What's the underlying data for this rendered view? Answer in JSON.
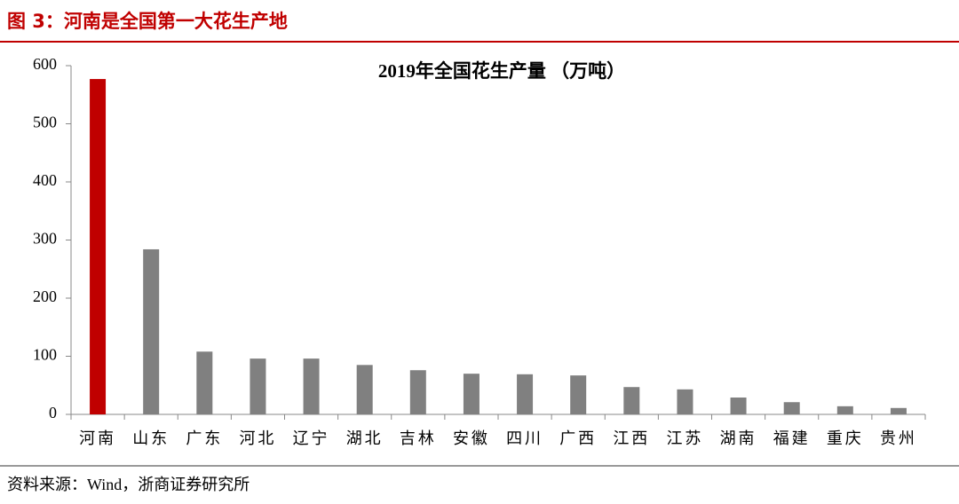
{
  "header": {
    "title": "图 3：河南是全国第一大花生产地"
  },
  "chart_data": {
    "type": "bar",
    "title": "2019年全国花生产量 （万吨）",
    "categories": [
      "河南",
      "山东",
      "广东",
      "河北",
      "辽宁",
      "湖北",
      "吉林",
      "安徽",
      "四川",
      "广西",
      "江西",
      "江苏",
      "湖南",
      "福建",
      "重庆",
      "贵州"
    ],
    "values": [
      577,
      284,
      108,
      96,
      96,
      85,
      76,
      70,
      69,
      67,
      47,
      43,
      29,
      21,
      14,
      11
    ],
    "colors": [
      "#c00000",
      "#808080",
      "#808080",
      "#808080",
      "#808080",
      "#808080",
      "#808080",
      "#808080",
      "#808080",
      "#808080",
      "#808080",
      "#808080",
      "#808080",
      "#808080",
      "#808080",
      "#808080"
    ],
    "ylim": [
      0,
      600
    ],
    "yticks": [
      0,
      100,
      200,
      300,
      400,
      500,
      600
    ],
    "grid": false
  },
  "source": "资料来源：Wind，浙商证券研究所"
}
